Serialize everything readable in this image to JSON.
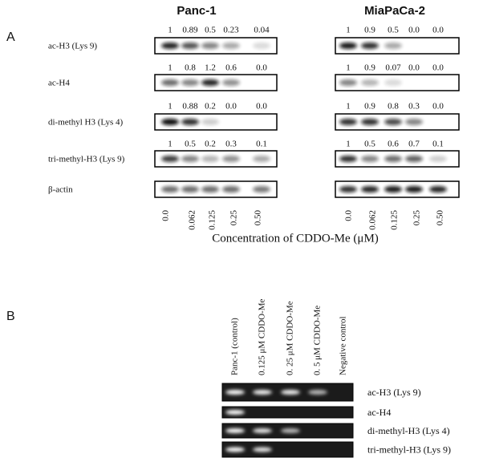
{
  "panel_a": {
    "label": "A",
    "row_labels": [
      "ac-H3 (Lys 9)",
      "ac-H4",
      "di-methyl H3 (Lys 4)",
      "tri-methyl-H3 (Lys 9)",
      "β-actin"
    ],
    "cell_lines": [
      {
        "name": "Panc-1",
        "rows": [
          [
            "1",
            "0.89",
            "0.5",
            "0.23",
            "0.04"
          ],
          [
            "1",
            "0.8",
            "1.2",
            "0.6",
            "0.0"
          ],
          [
            "1",
            "0.88",
            "0.2",
            "0.0",
            "0.0"
          ],
          [
            "1",
            "0.5",
            "0.2",
            "0.3",
            "0.1"
          ]
        ]
      },
      {
        "name": "MiaPaCa-2",
        "rows": [
          [
            "1",
            "0.9",
            "0.5",
            "0.0",
            "0.0"
          ],
          [
            "1",
            "0.9",
            "0.07",
            "0.0",
            "0.0"
          ],
          [
            "1",
            "0.9",
            "0.8",
            "0.3",
            "0.0"
          ],
          [
            "1",
            "0.5",
            "0.6",
            "0.7",
            "0.1"
          ]
        ]
      }
    ],
    "concentrations": [
      "0.0",
      "0.062",
      "0.125",
      "0.25",
      "0.50"
    ],
    "x_axis_label": "Concentration of CDDO-Me (μM)"
  },
  "panel_b": {
    "label": "B",
    "lanes": [
      "Panc-1 (control)",
      "0.125 μM CDDO-Me",
      "0. 25 μM CDDO-Me",
      "0. 5 μM CDDO-Me",
      "Negative control"
    ],
    "row_labels": [
      "ac-H3 (Lys 9)",
      "ac-H4",
      "di-methyl-H3 (Lys 4)",
      "tri-methyl-H3 (Lys 9)"
    ]
  }
}
